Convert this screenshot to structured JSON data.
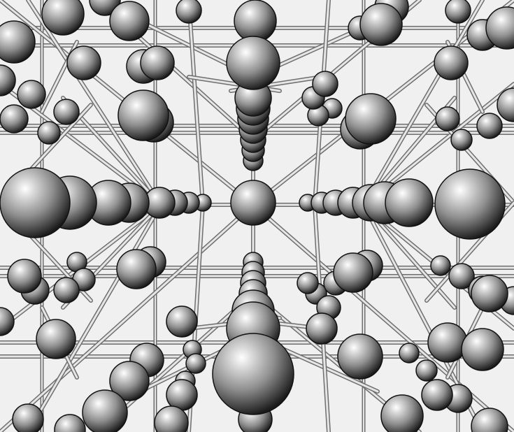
{
  "scene": {
    "subject": "crystal-lattice-ball-and-stick",
    "background_color": "#f0f0f0",
    "atom_palette": {
      "highlight": "#ffffff",
      "mid": "#9a9a9a",
      "shadow": "#1e1e1e"
    },
    "bond_palette": {
      "fill": "#e6e6e6",
      "edge": "#6f6f6f"
    }
  }
}
